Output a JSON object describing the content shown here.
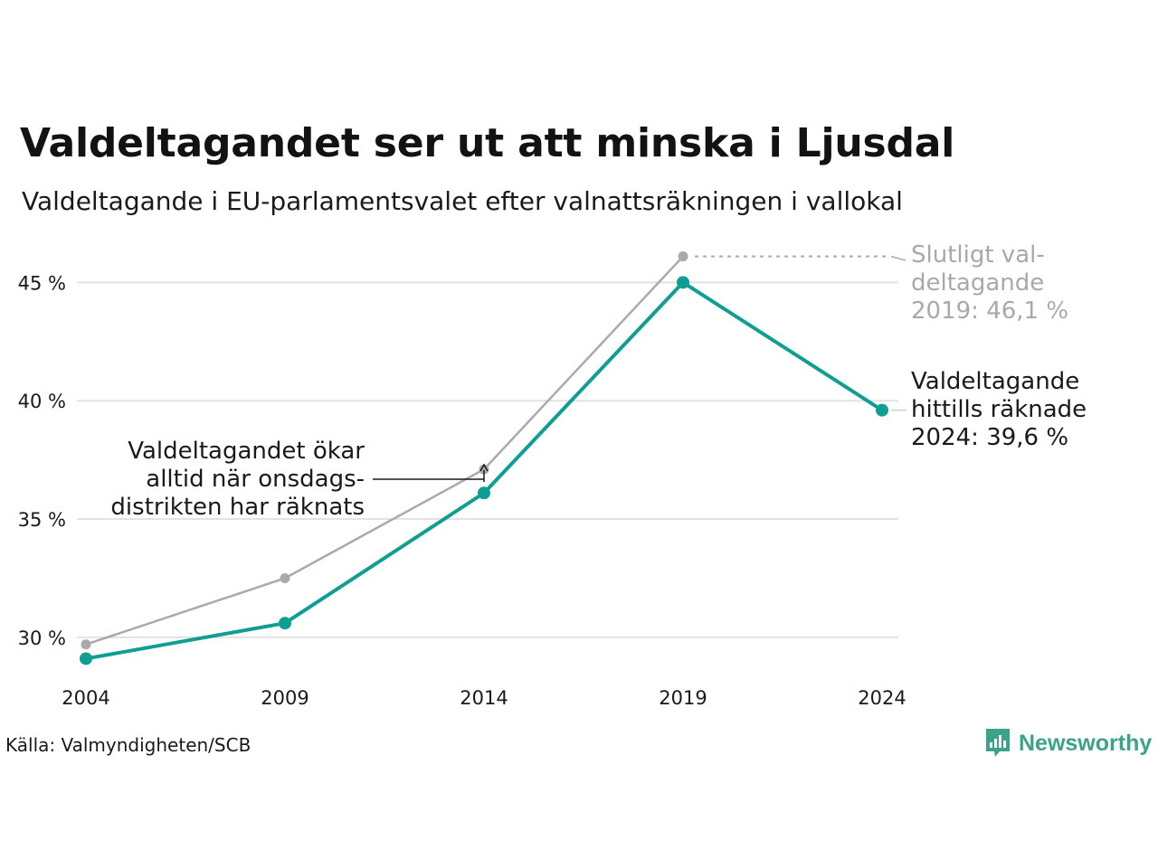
{
  "title": "Valdeltagandet ser ut att minska i Ljusdal",
  "subtitle": "Valdeltagande i EU-parlamentsvalet efter valnattsräkningen i vallokal",
  "source": "Källa: Valmyndigheten/SCB",
  "brand": {
    "name": "Newsworthy",
    "color": "#3aa38a",
    "icon": "newsworthy-bar-chart-icon"
  },
  "colors": {
    "main": "#0f9e93",
    "final": "#aaaaaa",
    "grid": "#e3e3e3",
    "text": "#1a1a1a"
  },
  "annotations": {
    "final_2019": [
      "Slutligt val-",
      "deltagande",
      "2019: 46,1 %"
    ],
    "current_2024": [
      "Valdeltagande",
      "hittills räknade",
      "2024: 39,6 %"
    ],
    "onsdag": [
      "Valdeltagandet ökar",
      "alltid när onsdags-",
      "distrikten har räknats"
    ]
  },
  "chart_data": {
    "type": "line",
    "title": "Valdeltagandet ser ut att minska i Ljusdal",
    "subtitle": "Valdeltagande i EU-parlamentsvalet efter valnattsräkningen i vallokal",
    "x": [
      2004,
      2009,
      2014,
      2019,
      2024
    ],
    "x_tick_labels": [
      "2004",
      "2009",
      "2014",
      "2019",
      "2024"
    ],
    "y_ticks": [
      30,
      35,
      40,
      45
    ],
    "y_tick_labels": [
      "30 %",
      "35 %",
      "40 %",
      "45 %"
    ],
    "ylim": [
      28.2,
      47.0
    ],
    "grid": true,
    "series": [
      {
        "key": "final",
        "values": [
          29.7,
          32.5,
          37.1,
          46.1,
          null
        ]
      },
      {
        "key": "main",
        "values": [
          29.1,
          30.6,
          36.1,
          45.0,
          39.6
        ]
      }
    ]
  }
}
